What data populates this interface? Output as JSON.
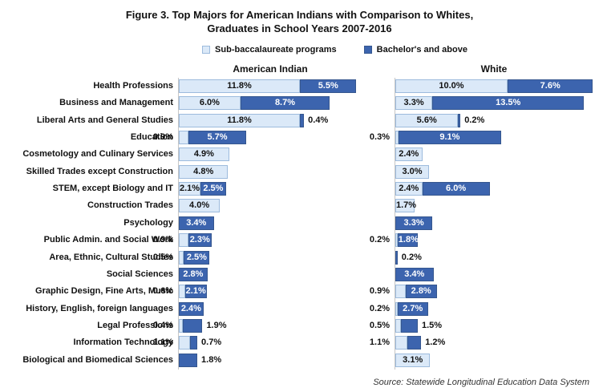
{
  "figure": {
    "title_line1": "Figure 3. Top Majors for American Indians with Comparison to Whites,",
    "title_line2": "Graduates in School Years 2007-2016",
    "source": "Source: Statewide Longitudinal Education Data System"
  },
  "legend": {
    "items": [
      {
        "label": "Sub-baccalaureate programs",
        "color": "#DBE9F8",
        "border": "#9DBBDD"
      },
      {
        "label": "Bachelor's and above",
        "color": "#3C64AE",
        "border": "#36578F"
      }
    ]
  },
  "colors": {
    "sub_fill": "#DBE9F8",
    "sub_border": "#9DBBDD",
    "bach_fill": "#3C64AE",
    "bach_border": "#36578F",
    "axis_line": "#C6C6C6",
    "label_dark_text": "#FFFFFF",
    "label_light_text": "#111111"
  },
  "chart_data": {
    "type": "bar",
    "orientation": "horizontal",
    "stacked": true,
    "unit": "%",
    "title": "Figure 3. Top Majors for American Indians with Comparison to Whites, Graduates in School Years 2007-2016",
    "legend_entries": [
      "Sub-baccalaureate programs",
      "Bachelor's and above"
    ],
    "legend_position": "top-center",
    "grid": false,
    "xlim": [
      0,
      18
    ],
    "categories": [
      "Health Professions",
      "Business and Management",
      "Liberal Arts and General Studies",
      "Education",
      "Cosmetology and Culinary Services",
      "Skilled Trades except Construction",
      "STEM, except Biology and IT",
      "Construction Trades",
      "Psychology",
      "Public Admin. and Social Work",
      "Area, Ethnic, Cultural Studies",
      "Social Sciences",
      "Graphic Design, Fine Arts, Music",
      "History, English, foreign languages",
      "Legal Professions",
      "Information Technology",
      "Biological and Biomedical Sciences"
    ],
    "panels": [
      {
        "name": "American Indian",
        "series": [
          {
            "name": "Sub-baccalaureate programs",
            "values": [
              11.8,
              6.0,
              11.8,
              0.9,
              4.9,
              4.8,
              2.1,
              4.0,
              null,
              0.9,
              0.5,
              null,
              0.6,
              null,
              0.4,
              1.1,
              null
            ],
            "label_pos": [
              "in",
              "in",
              "in",
              "left",
              "in",
              "in",
              "in",
              "in",
              null,
              "left",
              "left",
              null,
              "left",
              null,
              "left",
              "left",
              null
            ]
          },
          {
            "name": "Bachelor's and above",
            "values": [
              5.5,
              8.7,
              0.4,
              5.7,
              null,
              null,
              2.5,
              null,
              3.4,
              2.3,
              2.5,
              2.8,
              2.1,
              2.4,
              1.9,
              0.7,
              1.8
            ],
            "label_pos": [
              "in",
              "in",
              "right",
              "in",
              null,
              null,
              "in",
              null,
              "in",
              "in",
              "in",
              "in",
              "in",
              "in",
              "right",
              "right",
              "right"
            ]
          }
        ]
      },
      {
        "name": "White",
        "series": [
          {
            "name": "Sub-baccalaureate programs",
            "values": [
              10.0,
              3.3,
              5.6,
              0.3,
              2.4,
              3.0,
              2.4,
              1.7,
              null,
              0.2,
              null,
              null,
              0.9,
              0.2,
              0.5,
              1.1,
              3.1
            ],
            "label_pos": [
              "in",
              "in",
              "in",
              "left",
              "in",
              "in",
              "in",
              "in",
              null,
              "left",
              null,
              null,
              "left",
              "left",
              "left",
              "left",
              "in"
            ]
          },
          {
            "name": "Bachelor's and above",
            "values": [
              7.6,
              13.5,
              0.2,
              9.1,
              null,
              null,
              6.0,
              null,
              3.3,
              1.8,
              0.2,
              3.4,
              2.8,
              2.7,
              1.5,
              1.2,
              null
            ],
            "label_pos": [
              "in",
              "in",
              "right",
              "in",
              null,
              null,
              "in",
              null,
              "in",
              "in",
              "right",
              "in",
              "in",
              "in",
              "right",
              "right",
              null
            ]
          }
        ]
      }
    ]
  }
}
